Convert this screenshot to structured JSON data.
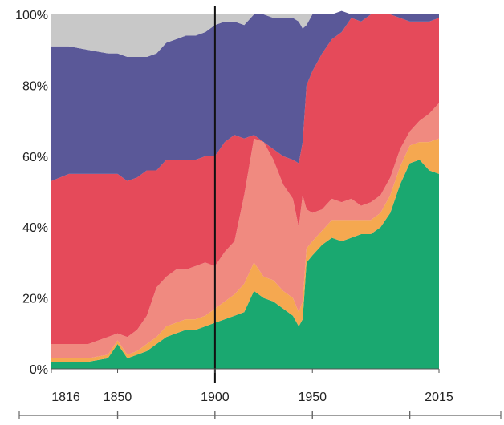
{
  "chart_data": {
    "type": "area",
    "stacked": "percent",
    "x": [
      1816,
      1825,
      1835,
      1845,
      1850,
      1855,
      1860,
      1865,
      1870,
      1875,
      1880,
      1885,
      1890,
      1895,
      1900,
      1905,
      1910,
      1915,
      1920,
      1925,
      1930,
      1935,
      1940,
      1943,
      1945,
      1947,
      1950,
      1955,
      1960,
      1965,
      1970,
      1975,
      1980,
      1985,
      1990,
      1995,
      2000,
      2005,
      2010,
      2015
    ],
    "series": [
      {
        "color": "#1aa870",
        "values": [
          2,
          2,
          2,
          3,
          7,
          3,
          4,
          5,
          7,
          9,
          10,
          11,
          11,
          12,
          13,
          14,
          15,
          16,
          22,
          20,
          19,
          17,
          15,
          12,
          14,
          30,
          32,
          35,
          37,
          36,
          37,
          38,
          38,
          40,
          44,
          52,
          58,
          59,
          56,
          55
        ]
      },
      {
        "color": "#f5a850",
        "values": [
          1,
          1,
          1,
          1,
          1,
          1,
          1,
          2,
          2,
          3,
          3,
          3,
          3,
          3,
          4,
          5,
          6,
          8,
          8,
          6,
          6,
          5,
          5,
          4,
          5,
          4,
          4,
          4,
          5,
          6,
          5,
          4,
          4,
          4,
          5,
          5,
          5,
          5,
          8,
          10
        ]
      },
      {
        "color": "#f08a80",
        "values": [
          4,
          4,
          4,
          5,
          2,
          5,
          6,
          8,
          14,
          14,
          15,
          14,
          15,
          15,
          12,
          14,
          15,
          25,
          35,
          38,
          34,
          30,
          28,
          24,
          30,
          11,
          8,
          6,
          6,
          5,
          6,
          4,
          5,
          5,
          5,
          5,
          4,
          6,
          8,
          10
        ]
      },
      {
        "color": "#e54a5a",
        "values": [
          46,
          48,
          48,
          46,
          45,
          44,
          43,
          41,
          33,
          33,
          31,
          31,
          30,
          30,
          31,
          31,
          30,
          16,
          1,
          0,
          3,
          8,
          11,
          18,
          15,
          35,
          40,
          44,
          45,
          48,
          51,
          52,
          53,
          51,
          46,
          37,
          31,
          28,
          26,
          24
        ]
      },
      {
        "color": "#5a5898",
        "values": [
          38,
          36,
          35,
          34,
          34,
          35,
          34,
          32,
          33,
          33,
          34,
          35,
          35,
          35,
          37,
          34,
          32,
          32,
          34,
          36,
          37,
          39,
          40,
          40,
          32,
          17,
          16,
          11,
          7,
          6,
          1,
          2,
          0,
          0,
          0,
          1,
          2,
          2,
          2,
          1
        ]
      },
      {
        "color": "#c8c8c8",
        "values": [
          9,
          9,
          10,
          11,
          11,
          12,
          12,
          12,
          11,
          8,
          7,
          6,
          6,
          5,
          3,
          2,
          2,
          3,
          0,
          0,
          1,
          1,
          1,
          2,
          4,
          3,
          0,
          0,
          0,
          0,
          0,
          0,
          0,
          0,
          0,
          0,
          0,
          0,
          0,
          0
        ]
      }
    ],
    "xlim": [
      1816,
      2015
    ],
    "ylim": [
      0,
      100
    ],
    "yticks": [
      "0%",
      "20%",
      "40%",
      "60%",
      "80%",
      "100%"
    ],
    "xticks": [
      {
        "value": 1816,
        "label": "1816"
      },
      {
        "value": 1850,
        "label": "1850"
      },
      {
        "value": 1900,
        "label": "1900"
      },
      {
        "value": 1950,
        "label": "1950"
      },
      {
        "value": 2015,
        "label": "2015"
      }
    ],
    "vline_x": 1900,
    "period_brackets": [
      [
        1816,
        1850
      ],
      [
        1850,
        1900
      ],
      [
        1900,
        1950
      ],
      [
        1950,
        2000
      ],
      [
        2000,
        2050
      ]
    ],
    "grid": false,
    "legend": "none"
  }
}
